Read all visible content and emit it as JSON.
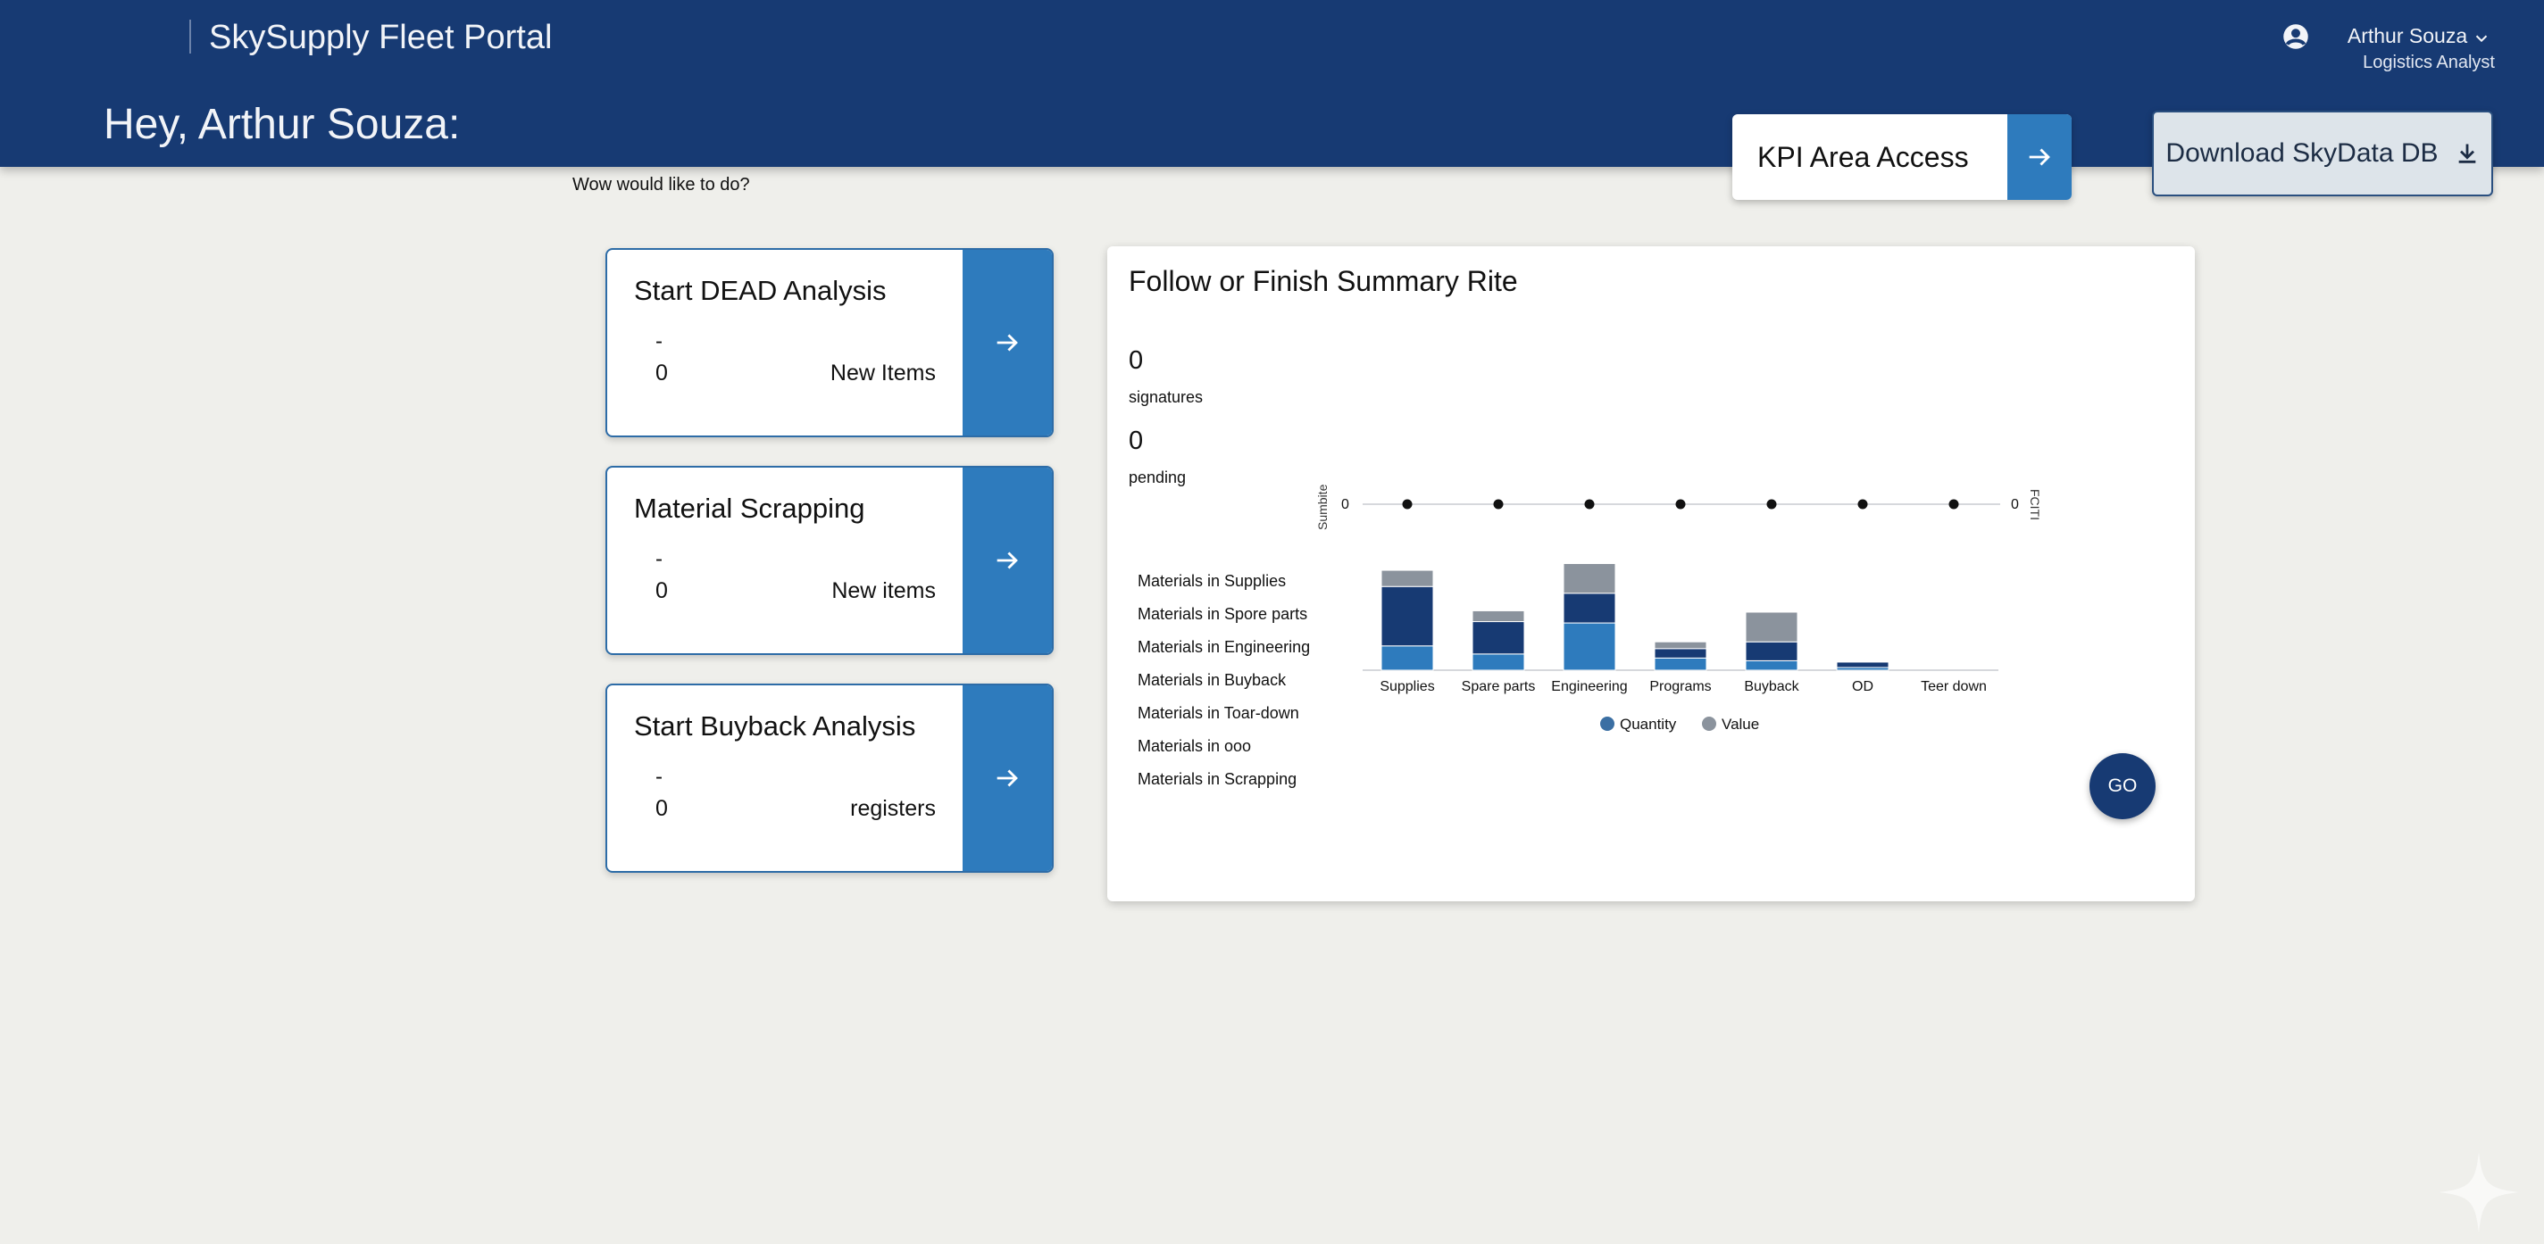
{
  "header": {
    "app_title": "SkySupply Fleet Portal",
    "greeting": "Hey, Arthur Souza:",
    "user": {
      "name": "Arthur Souza",
      "role": "Logistics Analyst",
      "icon": "account-circle-icon"
    }
  },
  "actions": {
    "kpi_label": "KPI Area Access",
    "download_label": "Download SkyData DB"
  },
  "subprompt": "Wow would like to do?",
  "cards": [
    {
      "title": "Start DEAD Analysis",
      "dash": "-",
      "count": "0",
      "meta": "New Items"
    },
    {
      "title": "Material Scrapping",
      "dash": "-",
      "count": "0",
      "meta": "New items"
    },
    {
      "title": "Start Buyback Analysis",
      "dash": "-",
      "count": "0",
      "meta": "registers"
    }
  ],
  "summary": {
    "title": "Follow or Finish Summary Rite",
    "stats": [
      {
        "value": "0",
        "label": "signatures"
      },
      {
        "value": "0",
        "label": "pending"
      }
    ],
    "materials": [
      "Materials in Supplies",
      "Materials in Spore parts",
      "Materials in Engineering",
      "Materials in Buyback",
      "Materials in Toar-down",
      "Materials in ooo",
      "Materials in Scrapping"
    ],
    "go_label": "GO"
  },
  "chart_data": {
    "type": "bar",
    "stacked": true,
    "categories": [
      "Supplies",
      "Spare parts",
      "Engineering",
      "Programs",
      "Buyback",
      "OD",
      "Teer down"
    ],
    "series": [
      {
        "name": "",
        "color": "#2e7bbd",
        "values": [
          18,
          12,
          35,
          9,
          7,
          2,
          0
        ]
      },
      {
        "name": "",
        "color": "#173a73",
        "values": [
          44,
          24,
          22,
          7,
          14,
          4,
          0
        ]
      },
      {
        "name": "",
        "color": "#8b939d",
        "values": [
          12,
          8,
          22,
          5,
          22,
          0,
          0
        ]
      }
    ],
    "legend": [
      {
        "name": "Quantity",
        "color": "#3b6fa3"
      },
      {
        "name": "Value",
        "color": "#8b939d"
      }
    ],
    "legend_placement": "bottom",
    "line": {
      "values": [
        0,
        0,
        0,
        0,
        0,
        0,
        0
      ]
    },
    "left_axis": {
      "label": "Sumbite",
      "tick": "0"
    },
    "right_axis": {
      "label": "FCITI",
      "tick": "0"
    },
    "ylim": [
      0,
      80
    ],
    "grid": false
  },
  "colors": {
    "header": "#173a73",
    "accent": "#2e7bbd",
    "background": "#efefeb"
  }
}
